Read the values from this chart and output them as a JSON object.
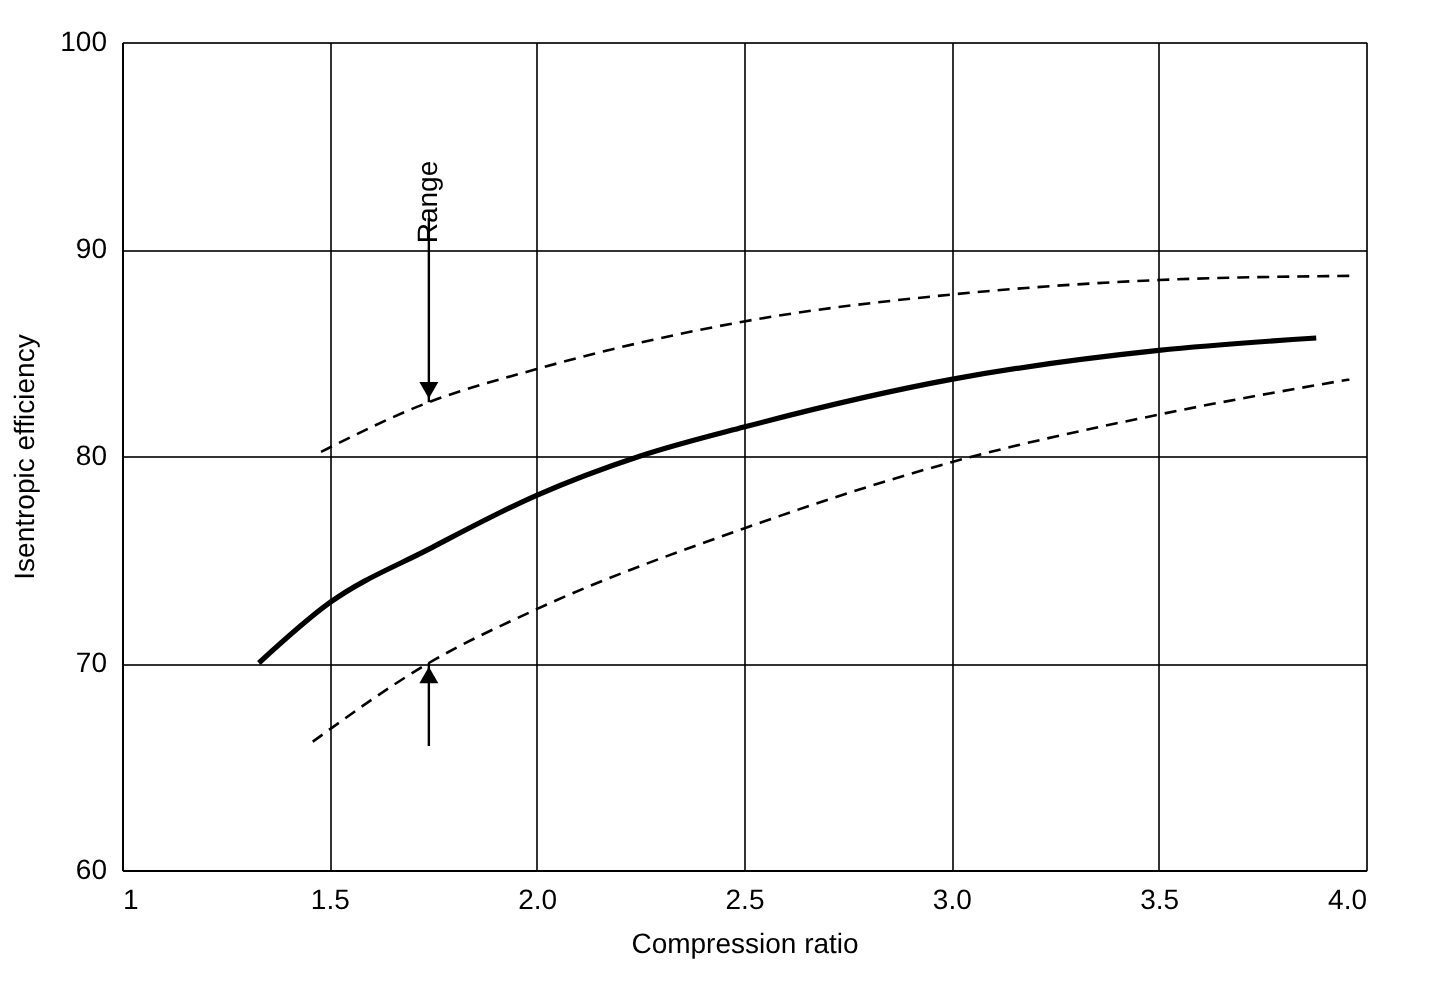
{
  "chart_data": {
    "type": "line",
    "xlabel": "Compression ratio",
    "ylabel": "Isentropic efficiency",
    "xlim": [
      1,
      4
    ],
    "ylim": [
      60,
      100
    ],
    "xticks": [
      1,
      1.5,
      {
        "value": 2,
        "label": "2.0"
      },
      2.5,
      {
        "value": 3,
        "label": "3.0"
      },
      3.5,
      {
        "value": 4,
        "label": "4.0"
      }
    ],
    "yticks": [
      60,
      70,
      80,
      90,
      100
    ],
    "grid": true,
    "marker": "none",
    "series": [
      {
        "color": "#000000",
        "line_style": "solid",
        "x": [
          1.33,
          1.5,
          1.74,
          2.0,
          2.25,
          2.5,
          3.0,
          3.5,
          3.88
        ],
        "values": [
          70.0,
          72.9,
          75.5,
          78.1,
          80.0,
          81.4,
          83.7,
          85.1,
          85.7
        ]
      },
      {
        "color": "#000000",
        "line_style": "dashed",
        "x": [
          1.48,
          1.74,
          2.0,
          2.5,
          3.0,
          3.5,
          3.96
        ],
        "values": [
          80.2,
          82.6,
          84.2,
          86.5,
          87.8,
          88.5,
          88.7
        ]
      },
      {
        "color": "#000000",
        "line_style": "dashed",
        "x": [
          1.46,
          1.74,
          2.0,
          2.5,
          3.0,
          3.5,
          3.96
        ],
        "values": [
          66.2,
          70.0,
          72.6,
          76.5,
          79.7,
          82.0,
          83.7
        ]
      }
    ],
    "annotations": [
      {
        "text": "Range",
        "x": 1.74,
        "y": 82.6
      }
    ]
  }
}
